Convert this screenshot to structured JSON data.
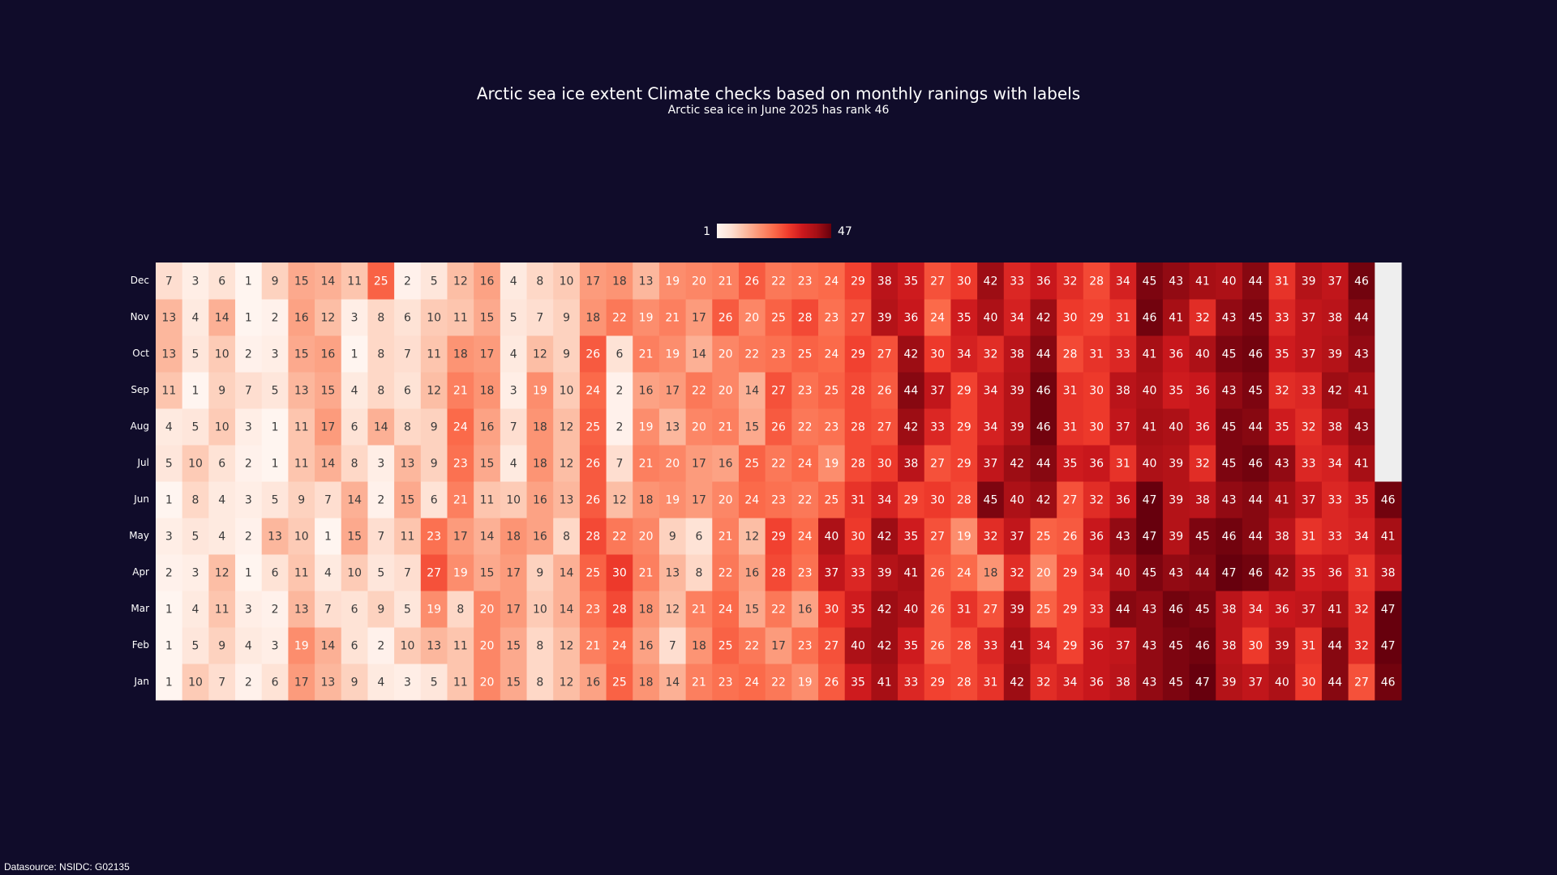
{
  "chart_data": {
    "type": "heatmap",
    "title": "Arctic sea ice extent Climate checks based on monthly ranings with labels",
    "subtitle": "Arctic sea ice in June 2025 has rank 46",
    "source": "Datasource: NSIDC: G02135",
    "rows": [
      "Jan",
      "Feb",
      "Mar",
      "Apr",
      "May",
      "Jun",
      "Jul",
      "Aug",
      "Sep",
      "Oct",
      "Nov",
      "Dec"
    ],
    "values": [
      [
        1,
        10,
        7,
        2,
        6,
        17,
        13,
        9,
        4,
        3,
        5,
        11,
        20,
        15,
        8,
        12,
        16,
        25,
        18,
        14,
        21,
        23,
        24,
        22,
        19,
        26,
        35,
        41,
        33,
        29,
        28,
        31,
        42,
        32,
        34,
        36,
        38,
        43,
        45,
        47,
        39,
        37,
        40,
        30,
        44,
        27,
        46
      ],
      [
        1,
        5,
        9,
        4,
        3,
        19,
        14,
        6,
        2,
        10,
        13,
        11,
        20,
        15,
        8,
        12,
        21,
        24,
        16,
        7,
        18,
        25,
        22,
        17,
        23,
        27,
        40,
        42,
        35,
        26,
        28,
        33,
        41,
        34,
        29,
        36,
        37,
        43,
        45,
        46,
        38,
        30,
        39,
        31,
        44,
        32,
        47
      ],
      [
        1,
        4,
        11,
        3,
        2,
        13,
        7,
        6,
        9,
        5,
        19,
        8,
        20,
        17,
        10,
        14,
        23,
        28,
        18,
        12,
        21,
        24,
        15,
        22,
        16,
        30,
        35,
        42,
        40,
        26,
        31,
        27,
        39,
        25,
        29,
        33,
        44,
        43,
        46,
        45,
        38,
        34,
        36,
        37,
        41,
        32,
        47
      ],
      [
        2,
        3,
        12,
        1,
        6,
        11,
        4,
        10,
        5,
        7,
        27,
        19,
        15,
        17,
        9,
        14,
        25,
        30,
        21,
        13,
        8,
        22,
        16,
        28,
        23,
        37,
        33,
        39,
        41,
        26,
        24,
        18,
        32,
        20,
        29,
        34,
        40,
        45,
        43,
        44,
        47,
        46,
        42,
        35,
        36,
        31,
        38
      ],
      [
        3,
        5,
        4,
        2,
        13,
        10,
        1,
        15,
        7,
        11,
        23,
        17,
        14,
        18,
        16,
        8,
        28,
        22,
        20,
        9,
        6,
        21,
        12,
        29,
        24,
        40,
        30,
        42,
        35,
        27,
        19,
        32,
        37,
        25,
        26,
        36,
        43,
        47,
        39,
        45,
        46,
        44,
        38,
        31,
        33,
        34,
        41
      ],
      [
        1,
        8,
        4,
        3,
        5,
        9,
        7,
        14,
        2,
        15,
        6,
        21,
        11,
        10,
        16,
        13,
        26,
        12,
        18,
        19,
        17,
        20,
        24,
        23,
        22,
        25,
        31,
        34,
        29,
        30,
        28,
        45,
        40,
        42,
        27,
        32,
        36,
        47,
        39,
        38,
        43,
        44,
        41,
        37,
        33,
        35,
        46
      ],
      [
        5,
        10,
        6,
        2,
        1,
        11,
        14,
        8,
        3,
        13,
        9,
        23,
        15,
        4,
        18,
        12,
        26,
        7,
        21,
        20,
        17,
        16,
        25,
        22,
        24,
        19,
        28,
        30,
        38,
        27,
        29,
        37,
        42,
        44,
        35,
        36,
        31,
        40,
        39,
        32,
        45,
        46,
        43,
        33,
        34,
        41,
        null
      ],
      [
        4,
        5,
        10,
        3,
        1,
        11,
        17,
        6,
        14,
        8,
        9,
        24,
        16,
        7,
        18,
        12,
        25,
        2,
        19,
        13,
        20,
        21,
        15,
        26,
        22,
        23,
        28,
        27,
        42,
        33,
        29,
        34,
        39,
        46,
        31,
        30,
        37,
        41,
        40,
        36,
        45,
        44,
        35,
        32,
        38,
        43,
        null
      ],
      [
        11,
        1,
        9,
        7,
        5,
        13,
        15,
        4,
        8,
        6,
        12,
        21,
        18,
        3,
        19,
        10,
        24,
        2,
        16,
        17,
        22,
        20,
        14,
        27,
        23,
        25,
        28,
        26,
        44,
        37,
        29,
        34,
        39,
        46,
        31,
        30,
        38,
        40,
        35,
        36,
        43,
        45,
        32,
        33,
        42,
        41,
        null
      ],
      [
        13,
        5,
        10,
        2,
        3,
        15,
        16,
        1,
        8,
        7,
        11,
        18,
        17,
        4,
        12,
        9,
        26,
        6,
        21,
        19,
        14,
        20,
        22,
        23,
        25,
        24,
        29,
        27,
        42,
        30,
        34,
        32,
        38,
        44,
        28,
        31,
        33,
        41,
        36,
        40,
        45,
        46,
        35,
        37,
        39,
        43,
        null
      ],
      [
        13,
        4,
        14,
        1,
        2,
        16,
        12,
        3,
        8,
        6,
        10,
        11,
        15,
        5,
        7,
        9,
        18,
        22,
        19,
        21,
        17,
        26,
        20,
        25,
        28,
        23,
        27,
        39,
        36,
        24,
        35,
        40,
        34,
        42,
        30,
        29,
        31,
        46,
        41,
        32,
        43,
        45,
        33,
        37,
        38,
        44,
        null
      ],
      [
        7,
        3,
        6,
        1,
        9,
        15,
        14,
        11,
        25,
        2,
        5,
        12,
        16,
        4,
        8,
        10,
        17,
        18,
        13,
        19,
        20,
        21,
        26,
        22,
        23,
        24,
        29,
        38,
        35,
        27,
        30,
        42,
        33,
        36,
        32,
        28,
        34,
        45,
        43,
        41,
        40,
        44,
        31,
        39,
        37,
        46,
        null
      ]
    ],
    "zlim": [
      1,
      47
    ],
    "zticks": [
      1,
      47
    ],
    "colormap": [
      "#fff5f0",
      "#fee0d2",
      "#fcbba1",
      "#fc9272",
      "#fb6a4a",
      "#ef3b2c",
      "#cb181d",
      "#a50f15",
      "#67000d"
    ],
    "missing_color": "#eeeeee"
  }
}
